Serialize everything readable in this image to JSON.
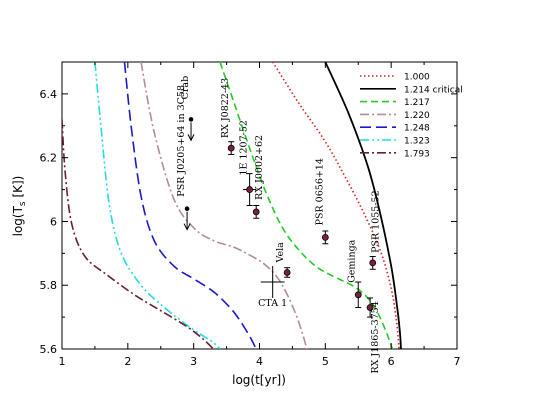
{
  "chart_data": {
    "type": "line",
    "xlabel": "log(t[yr])",
    "ylabel": "log(T",
    "ylabel_sub": "s",
    "ylabel_tail": " [K])",
    "xlim": [
      1,
      7
    ],
    "ylim": [
      5.6,
      6.5
    ],
    "xticks": [
      1,
      2,
      3,
      4,
      5,
      6,
      7
    ],
    "xtick_labels": [
      "1",
      "2",
      "3",
      "4",
      "5",
      "6",
      "7"
    ],
    "yticks": [
      5.6,
      5.8,
      6.0,
      6.2,
      6.4
    ],
    "ytick_labels": [
      "5.6",
      "5.8",
      "6",
      "6.2",
      "6.4"
    ],
    "legend_position": "top-right",
    "series": [
      {
        "name": "1.000",
        "color": "#e02020",
        "dash": "dotted",
        "x": [
          4.2,
          4.6,
          5.0,
          5.3,
          5.6,
          5.85,
          6.0,
          6.08,
          6.12
        ],
        "y": [
          6.5,
          6.37,
          6.25,
          6.14,
          6.02,
          5.9,
          5.79,
          5.69,
          5.6
        ]
      },
      {
        "name": "1.214 critical",
        "color": "#000000",
        "dash": "solid",
        "x": [
          5.0,
          5.35,
          5.65,
          5.85,
          6.0,
          6.08,
          6.13,
          6.15
        ],
        "y": [
          6.5,
          6.34,
          6.17,
          6.01,
          5.86,
          5.75,
          5.66,
          5.6
        ]
      },
      {
        "name": "1.217",
        "color": "#22cc22",
        "dash": "dashed",
        "x": [
          3.4,
          3.6,
          3.85,
          4.1,
          4.35,
          4.6,
          4.85,
          5.1,
          5.4,
          5.6,
          5.75,
          5.85,
          5.95,
          6.02
        ],
        "y": [
          6.5,
          6.38,
          6.23,
          6.09,
          5.98,
          5.91,
          5.86,
          5.83,
          5.8,
          5.77,
          5.73,
          5.69,
          5.64,
          5.6
        ]
      },
      {
        "name": "1.220",
        "color": "#b09090",
        "dash": "dashdot",
        "x": [
          2.2,
          2.4,
          2.7,
          3.0,
          3.3,
          3.6,
          3.8,
          4.05,
          4.25,
          4.4,
          4.55,
          4.65,
          4.72
        ],
        "y": [
          6.5,
          6.28,
          6.07,
          5.98,
          5.94,
          5.92,
          5.9,
          5.87,
          5.83,
          5.78,
          5.71,
          5.65,
          5.6
        ]
      },
      {
        "name": "1.248",
        "color": "#1a1acc",
        "dash": "longdash",
        "x": [
          1.95,
          2.05,
          2.2,
          2.4,
          2.7,
          3.0,
          3.3,
          3.55,
          3.7,
          3.85,
          3.95
        ],
        "y": [
          6.5,
          6.3,
          6.08,
          5.94,
          5.86,
          5.82,
          5.78,
          5.73,
          5.69,
          5.64,
          5.6
        ]
      },
      {
        "name": "1.323",
        "color": "#22dddd",
        "dash": "dashdotdot",
        "x": [
          1.5,
          1.6,
          1.72,
          1.9,
          2.2,
          2.5,
          2.8,
          3.0,
          3.15,
          3.3,
          3.4
        ],
        "y": [
          6.5,
          6.28,
          6.05,
          5.9,
          5.8,
          5.74,
          5.69,
          5.66,
          5.64,
          5.62,
          5.6
        ]
      },
      {
        "name": "1.793",
        "color": "#6b1e3c",
        "dash": "dashdot",
        "x": [
          1.0,
          1.05,
          1.15,
          1.35,
          1.7,
          2.1,
          2.5,
          2.9,
          3.15,
          3.3
        ],
        "y": [
          6.32,
          6.15,
          5.99,
          5.89,
          5.83,
          5.77,
          5.72,
          5.67,
          5.63,
          5.6
        ]
      }
    ],
    "observations": [
      {
        "label": "Crab",
        "x": 2.96,
        "y": 6.32,
        "upper_limit": true,
        "filled": true
      },
      {
        "label": "PSR J0205+64 in 3C58",
        "x": 2.9,
        "y": 6.04,
        "upper_limit": true,
        "filled": true
      },
      {
        "label": "RX J0822-43",
        "x": 3.57,
        "y": 6.23,
        "yerr": 0.02,
        "xerr": 0.04
      },
      {
        "label": "1E 1207-52",
        "x": 3.85,
        "y": 6.1,
        "yerr": 0.05,
        "xerr": 0.1
      },
      {
        "label": "RX J0002+62",
        "x": 3.95,
        "y": 6.03,
        "yerr": 0.02,
        "xerr": 0.0
      },
      {
        "label": "Vela",
        "x": 4.42,
        "y": 5.84,
        "yerr": 0.015,
        "xerr": 0.0
      },
      {
        "label": "CTA 1",
        "x": 4.2,
        "y": 5.81,
        "upper_limit": false,
        "cross_only": true,
        "xerr": 0.18,
        "yerr": 0.05
      },
      {
        "label": "PSR 0656+14",
        "x": 5.0,
        "y": 5.95,
        "yerr": 0.02,
        "xerr": 0.0
      },
      {
        "label": "Geminga",
        "x": 5.5,
        "y": 5.77,
        "yerr": 0.04,
        "xerr": 0.0
      },
      {
        "label": "RX J1865-3754",
        "x": 5.68,
        "y": 5.73,
        "yerr": 0.03,
        "xerr": 0.0
      },
      {
        "label": "PSR 1055-52",
        "x": 5.72,
        "y": 5.87,
        "yerr": 0.02,
        "xerr": 0.0
      }
    ]
  }
}
